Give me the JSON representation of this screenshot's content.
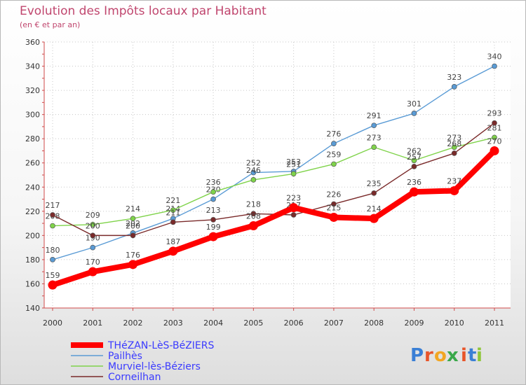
{
  "chart_data": {
    "type": "line",
    "title": "Evolution des Impôts locaux par Habitant",
    "subtitle": "(en € et par an)",
    "xlabel": "",
    "ylabel": "",
    "ylim": [
      140,
      360
    ],
    "yticks": [
      140,
      160,
      180,
      200,
      220,
      240,
      260,
      280,
      300,
      320,
      340,
      360
    ],
    "x": [
      "2000",
      "2001",
      "2002",
      "2003",
      "2004",
      "2005",
      "2006",
      "2007",
      "2008",
      "2009",
      "2010",
      "2011"
    ],
    "series": [
      {
        "name": "Pailhès",
        "color": "#5a9bd5",
        "values": [
          180,
          190,
          202,
          214,
          230,
          252,
          253,
          276,
          291,
          301,
          323,
          340
        ],
        "labels": [
          "180",
          "190",
          "202",
          "214",
          "230",
          "252",
          "253",
          "276",
          "291",
          "301",
          "323",
          "340"
        ]
      },
      {
        "name": "Murviel-lès-Béziers",
        "color": "#7fd34a",
        "values": [
          208,
          209,
          214,
          221,
          236,
          246,
          251,
          259,
          273,
          262,
          273,
          281
        ],
        "labels": [
          "208",
          "209",
          "214",
          "221",
          "236",
          "246",
          "251",
          "259",
          "273",
          "262",
          "273",
          "281"
        ]
      },
      {
        "name": "Corneilhan",
        "color": "#7a2a2a",
        "values": [
          217,
          200,
          200,
          211,
          213,
          218,
          217,
          226,
          235,
          257,
          268,
          293
        ],
        "labels": [
          "217",
          "200",
          "200",
          "211",
          "213",
          "218",
          "217",
          "226",
          "235",
          "257",
          "268",
          "293"
        ]
      },
      {
        "name": "THéZAN-LèS-BéZIERS",
        "color": "#ff0000",
        "values": [
          159,
          170,
          176,
          187,
          199,
          208,
          223,
          215,
          214,
          236,
          237,
          270
        ],
        "labels": [
          "159",
          "170",
          "176",
          "187",
          "199",
          "208",
          "223",
          "215",
          "214",
          "236",
          "237",
          "270"
        ]
      }
    ],
    "legend": {
      "placement": "bottom-left",
      "entries": [
        {
          "name": "THéZAN-LèS-BéZIERS",
          "color": "#ff0000",
          "text_color": "#3a3aff"
        },
        {
          "name": "Pailhès",
          "color": "#5a9bd5",
          "text_color": "#3a3aff"
        },
        {
          "name": "Murviel-lès-Béziers",
          "color": "#7fd34a",
          "text_color": "#3a3aff"
        },
        {
          "name": "Corneilhan",
          "color": "#7a2a2a",
          "text_color": "#3a3aff"
        }
      ]
    }
  },
  "logo": {
    "text": "Proxiti",
    "letters": [
      "P",
      "r",
      "o",
      "x",
      "i",
      "t",
      "i"
    ],
    "colors": [
      "#3a7fd5",
      "#e8552a",
      "#f2a623",
      "#3aa84a",
      "#e8552a",
      "#3a7fd5",
      "#8fc63a"
    ]
  }
}
